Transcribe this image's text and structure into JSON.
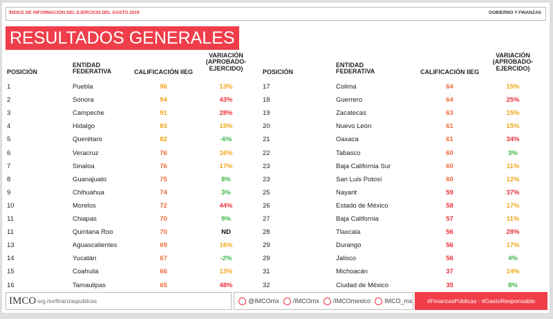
{
  "header": {
    "report": "ÍNDICE DE INFORMACIÓN DEL EJERCICIO DEL GASTO 2019",
    "section": "GOBIERNO Y FINANZAS"
  },
  "title": "RESULTADOS GENERALES",
  "columns": [
    "POSICIÓN",
    "ENTIDAD FEDERATIVA",
    "CALIFICACIÓN IIEG",
    "VARIACIÓN (APROBADO-EJERCIDO)"
  ],
  "tables": [
    {
      "rows": [
        [
          1,
          "Puebla",
          96,
          "13%"
        ],
        [
          2,
          "Sonora",
          94,
          "43%"
        ],
        [
          3,
          "Campeche",
          91,
          "28%"
        ],
        [
          4,
          "Hidalgo",
          83,
          "15%"
        ],
        [
          5,
          "Querétaro",
          82,
          "-6%"
        ],
        [
          6,
          "Veracruz",
          76,
          "16%"
        ],
        [
          7,
          "Sinaloa",
          76,
          "17%"
        ],
        [
          8,
          "Guanajuato",
          75,
          "8%"
        ],
        [
          9,
          "Chihuahua",
          74,
          "3%"
        ],
        [
          10,
          "Morelos",
          72,
          "44%"
        ],
        [
          11,
          "Chiapas",
          70,
          "9%"
        ],
        [
          11,
          "Quintana Roo",
          70,
          "ND"
        ],
        [
          13,
          "Aguascalientes",
          69,
          "16%"
        ],
        [
          14,
          "Yucatán",
          67,
          "-2%"
        ],
        [
          15,
          "Coahuila",
          66,
          "13%"
        ],
        [
          16,
          "Tamaulipas",
          65,
          "48%"
        ]
      ]
    },
    {
      "rows": [
        [
          17,
          "Colima",
          64,
          "15%"
        ],
        [
          18,
          "Guerrero",
          64,
          "25%"
        ],
        [
          19,
          "Zacatecas",
          63,
          "15%"
        ],
        [
          20,
          "Nuevo León",
          61,
          "15%"
        ],
        [
          21,
          "Oaxaca",
          61,
          "34%"
        ],
        [
          22,
          "Tabasco",
          60,
          "3%"
        ],
        [
          23,
          "Baja California Sur",
          60,
          "11%"
        ],
        [
          23,
          "San Luis Potosí",
          60,
          "12%"
        ],
        [
          25,
          "Nayarit",
          59,
          "37%"
        ],
        [
          26,
          "Estado de México",
          58,
          "17%"
        ],
        [
          27,
          "Baja California",
          57,
          "11%"
        ],
        [
          28,
          "Tlaxcala",
          56,
          "28%"
        ],
        [
          29,
          "Durango",
          56,
          "17%"
        ],
        [
          29,
          "Jalisco",
          56,
          "4%"
        ],
        [
          31,
          "Michoacán",
          37,
          "14%"
        ],
        [
          32,
          "Ciudad de México",
          35,
          "8%"
        ]
      ]
    }
  ],
  "footer": {
    "logo": "IMCO",
    "url": "org.mx/finanzaspublicas",
    "twitter": "@IMCOmx",
    "facebook": "/IMCOmx",
    "youtube": "/IMCOmexico",
    "instagram": "IMCO_mx",
    "hashtags": "#FinanzasPúblicas · #GastoResponsable"
  }
}
